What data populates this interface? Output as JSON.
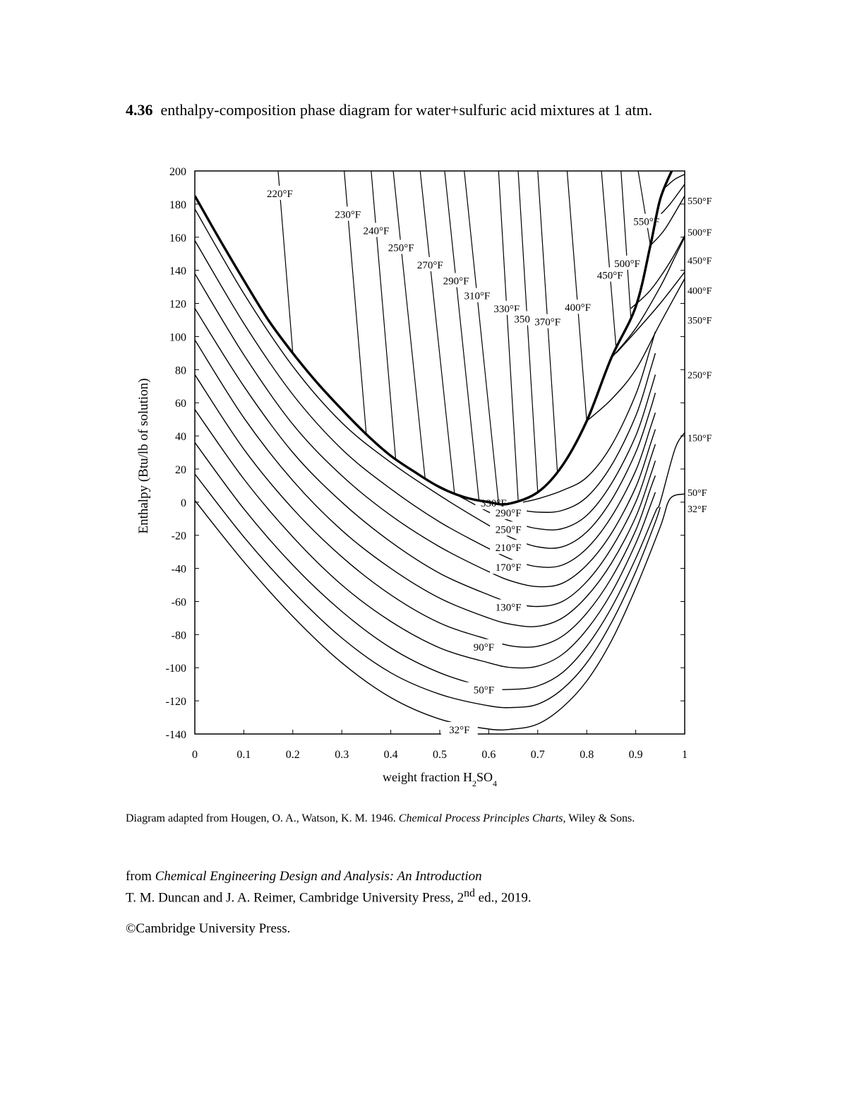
{
  "header": {
    "number": "4.36",
    "title": "enthalpy-composition phase diagram for water+sulfuric acid mixtures at 1 atm."
  },
  "caption": {
    "prefix": "Diagram adapted from Hougen, O. A., Watson, K. M. 1946. ",
    "book": "Chemical Process Principles Charts",
    "suffix": ", Wiley & Sons."
  },
  "source": {
    "line1_prefix": "from ",
    "line1_book": "Chemical Engineering Design and Analysis:  An Introduction",
    "line2_main": "T. M. Duncan and J. A. Reimer, Cambridge University Press, 2",
    "line2_sup": "nd",
    "line2_end": " ed., 2019."
  },
  "copyright": "©Cambridge University Press.",
  "chart_data": {
    "type": "line",
    "xlabel": "weight fraction H2SO4",
    "ylabel": "Enthalpy (Btu/lb of solution)",
    "xlim": [
      0,
      1
    ],
    "ylim": [
      -140,
      200
    ],
    "x_ticks": [
      {
        "v": 0,
        "label": "0"
      },
      {
        "v": 0.1,
        "label": "0.1"
      },
      {
        "v": 0.2,
        "label": "0.2"
      },
      {
        "v": 0.3,
        "label": "0.3"
      },
      {
        "v": 0.4,
        "label": "0.4"
      },
      {
        "v": 0.5,
        "label": "0.5"
      },
      {
        "v": 0.6,
        "label": "0.6"
      },
      {
        "v": 0.7,
        "label": "0.7"
      },
      {
        "v": 0.8,
        "label": "0.8"
      },
      {
        "v": 0.9,
        "label": "0.9"
      },
      {
        "v": 1,
        "label": "1"
      }
    ],
    "y_ticks": [
      {
        "v": 200,
        "label": "200"
      },
      {
        "v": 180,
        "label": "180"
      },
      {
        "v": 160,
        "label": "160"
      },
      {
        "v": 140,
        "label": "140"
      },
      {
        "v": 120,
        "label": "120"
      },
      {
        "v": 100,
        "label": "100"
      },
      {
        "v": 80,
        "label": "80"
      },
      {
        "v": 60,
        "label": "60"
      },
      {
        "v": 40,
        "label": "40"
      },
      {
        "v": 20,
        "label": "20"
      },
      {
        "v": 0,
        "label": "0"
      },
      {
        "v": -20,
        "label": "-20"
      },
      {
        "v": -40,
        "label": "-40"
      },
      {
        "v": -60,
        "label": "-60"
      },
      {
        "v": -80,
        "label": "-80"
      },
      {
        "v": -100,
        "label": "-100"
      },
      {
        "v": -120,
        "label": "-120"
      },
      {
        "v": -140,
        "label": "-140"
      }
    ],
    "boiling_curve": [
      [
        0.0,
        185
      ],
      [
        0.05,
        159
      ],
      [
        0.1,
        134
      ],
      [
        0.15,
        110
      ],
      [
        0.2,
        90
      ],
      [
        0.25,
        72
      ],
      [
        0.3,
        56
      ],
      [
        0.35,
        41
      ],
      [
        0.4,
        28
      ],
      [
        0.45,
        18
      ],
      [
        0.5,
        9
      ],
      [
        0.55,
        3
      ],
      [
        0.6,
        0
      ],
      [
        0.64,
        -1
      ],
      [
        0.7,
        6
      ],
      [
        0.75,
        22
      ],
      [
        0.8,
        49
      ],
      [
        0.85,
        87
      ],
      [
        0.9,
        118
      ],
      [
        0.93,
        155
      ],
      [
        0.95,
        183
      ],
      [
        0.975,
        201
      ]
    ],
    "isotherms": [
      {
        "name": "32°F",
        "left": 1,
        "dip": 0.04,
        "pts": [
          [
            0.0,
            1
          ],
          [
            0.1,
            -36
          ],
          [
            0.2,
            -69
          ],
          [
            0.3,
            -97
          ],
          [
            0.4,
            -118
          ],
          [
            0.5,
            -131
          ],
          [
            0.6,
            -137
          ],
          [
            0.65,
            -137
          ],
          [
            0.7,
            -134
          ],
          [
            0.75,
            -124
          ],
          [
            0.8,
            -108
          ],
          [
            0.85,
            -84
          ],
          [
            0.9,
            -52
          ],
          [
            0.95,
            -15
          ],
          [
            0.97,
            2
          ],
          [
            1.0,
            5
          ]
        ]
      },
      {
        "name": "",
        "left": 1,
        "dip": 0.04,
        "pts": [
          [
            0.0,
            17
          ],
          [
            0.1,
            -21
          ],
          [
            0.2,
            -54
          ],
          [
            0.3,
            -82
          ],
          [
            0.4,
            -103
          ],
          [
            0.5,
            -116
          ],
          [
            0.6,
            -123
          ],
          [
            0.65,
            -124
          ],
          [
            0.7,
            -122
          ],
          [
            0.75,
            -113
          ],
          [
            0.8,
            -97
          ],
          [
            0.85,
            -73
          ],
          [
            0.9,
            -42
          ],
          [
            0.94,
            -12
          ],
          [
            0.95,
            -3
          ]
        ]
      },
      {
        "name": "50°F",
        "left": 0,
        "dip": 0.04,
        "pts": [
          [
            0.0,
            36
          ],
          [
            0.1,
            -4
          ],
          [
            0.2,
            -38
          ],
          [
            0.3,
            -66
          ],
          [
            0.4,
            -88
          ],
          [
            0.5,
            -103
          ],
          [
            0.6,
            -112
          ],
          [
            0.65,
            -113
          ],
          [
            0.7,
            -111
          ],
          [
            0.75,
            -103
          ],
          [
            0.8,
            -87
          ],
          [
            0.85,
            -64
          ],
          [
            0.9,
            -34
          ],
          [
            0.94,
            -6
          ],
          [
            0.95,
            0
          ],
          [
            0.98,
            32
          ],
          [
            1.0,
            42
          ]
        ]
      },
      {
        "name": "",
        "left": 1,
        "dip": 0.04,
        "pts": [
          [
            0.0,
            56
          ],
          [
            0.1,
            14
          ],
          [
            0.2,
            -21
          ],
          [
            0.3,
            -50
          ],
          [
            0.4,
            -72
          ],
          [
            0.5,
            -88
          ],
          [
            0.6,
            -97
          ],
          [
            0.65,
            -100
          ],
          [
            0.7,
            -99
          ],
          [
            0.75,
            -92
          ],
          [
            0.8,
            -77
          ],
          [
            0.85,
            -55
          ],
          [
            0.9,
            -25
          ],
          [
            0.93,
            -2
          ],
          [
            0.94,
            6
          ]
        ]
      },
      {
        "name": "90°F",
        "left": 0,
        "dip": 0.04,
        "pts": [
          [
            0.0,
            77
          ],
          [
            0.1,
            32
          ],
          [
            0.2,
            -4
          ],
          [
            0.3,
            -33
          ],
          [
            0.4,
            -56
          ],
          [
            0.5,
            -73
          ],
          [
            0.6,
            -83
          ],
          [
            0.65,
            -87
          ],
          [
            0.7,
            -87
          ],
          [
            0.75,
            -81
          ],
          [
            0.8,
            -67
          ],
          [
            0.85,
            -46
          ],
          [
            0.9,
            -17
          ],
          [
            0.93,
            8
          ],
          [
            0.94,
            16
          ]
        ]
      },
      {
        "name": "",
        "left": 1,
        "dip": 0.04,
        "pts": [
          [
            0.0,
            98
          ],
          [
            0.1,
            51
          ],
          [
            0.2,
            13
          ],
          [
            0.3,
            -17
          ],
          [
            0.4,
            -40
          ],
          [
            0.5,
            -58
          ],
          [
            0.6,
            -70
          ],
          [
            0.65,
            -74
          ],
          [
            0.7,
            -75
          ],
          [
            0.75,
            -70
          ],
          [
            0.8,
            -57
          ],
          [
            0.85,
            -37
          ],
          [
            0.9,
            -9
          ],
          [
            0.93,
            16
          ],
          [
            0.94,
            25
          ]
        ]
      },
      {
        "name": "130°F",
        "left": 0,
        "dip": 0.04,
        "pts": [
          [
            0.0,
            117
          ],
          [
            0.1,
            70
          ],
          [
            0.2,
            30
          ],
          [
            0.3,
            0
          ],
          [
            0.4,
            -24
          ],
          [
            0.5,
            -43
          ],
          [
            0.6,
            -56
          ],
          [
            0.65,
            -61
          ],
          [
            0.7,
            -63
          ],
          [
            0.75,
            -60
          ],
          [
            0.8,
            -48
          ],
          [
            0.85,
            -28
          ],
          [
            0.9,
            0
          ],
          [
            0.93,
            26
          ],
          [
            0.94,
            35
          ]
        ]
      },
      {
        "name": "",
        "left": 1,
        "dip": 0.04,
        "pts": [
          [
            0.0,
            138
          ],
          [
            0.1,
            89
          ],
          [
            0.2,
            47
          ],
          [
            0.3,
            16
          ],
          [
            0.4,
            -8
          ],
          [
            0.5,
            -27
          ],
          [
            0.6,
            -42
          ],
          [
            0.65,
            -48
          ],
          [
            0.7,
            -51
          ],
          [
            0.75,
            -49
          ],
          [
            0.8,
            -38
          ],
          [
            0.85,
            -19
          ],
          [
            0.9,
            9
          ],
          [
            0.93,
            35
          ],
          [
            0.94,
            44
          ]
        ]
      },
      {
        "name": "170°F",
        "left": 0,
        "dip": 0.04,
        "pts": [
          [
            0.0,
            158
          ],
          [
            0.1,
            108
          ],
          [
            0.2,
            65
          ],
          [
            0.3,
            32
          ],
          [
            0.4,
            8
          ],
          [
            0.5,
            -12
          ],
          [
            0.6,
            -28
          ],
          [
            0.65,
            -35
          ],
          [
            0.7,
            -39
          ],
          [
            0.75,
            -38
          ],
          [
            0.8,
            -28
          ],
          [
            0.85,
            -9
          ],
          [
            0.9,
            19
          ],
          [
            0.93,
            45
          ],
          [
            0.94,
            54
          ]
        ]
      },
      {
        "name": "210°F",
        "left": 0,
        "dip": 0.04,
        "pts": [
          [
            0.0,
            177
          ],
          [
            0.1,
            126
          ],
          [
            0.2,
            82
          ],
          [
            0.3,
            48
          ],
          [
            0.4,
            24
          ],
          [
            0.5,
            4
          ],
          [
            0.6,
            -14
          ],
          [
            0.65,
            -22
          ],
          [
            0.7,
            -27
          ],
          [
            0.75,
            -27
          ],
          [
            0.8,
            -18
          ],
          [
            0.85,
            1
          ],
          [
            0.9,
            30
          ],
          [
            0.93,
            56
          ],
          [
            0.94,
            66
          ]
        ]
      },
      {
        "name": "250°F",
        "left": 0,
        "dip": 0,
        "pts": [
          [
            0.47,
            14
          ],
          [
            0.55,
            2
          ],
          [
            0.6,
            -6
          ],
          [
            0.65,
            -12
          ],
          [
            0.7,
            -16
          ],
          [
            0.75,
            -16
          ],
          [
            0.8,
            -8
          ],
          [
            0.85,
            11
          ],
          [
            0.9,
            40
          ],
          [
            0.93,
            67
          ],
          [
            0.94,
            77
          ]
        ]
      },
      {
        "name": "290°F",
        "left": 0,
        "dip": 0,
        "pts": [
          [
            0.6,
            -1
          ],
          [
            0.65,
            -4
          ],
          [
            0.7,
            -6
          ],
          [
            0.75,
            -5
          ],
          [
            0.8,
            3
          ],
          [
            0.85,
            22
          ],
          [
            0.9,
            52
          ],
          [
            0.93,
            80
          ],
          [
            0.94,
            90
          ]
        ]
      },
      {
        "name": "330°F",
        "left": 0,
        "dip": 0,
        "pts": [
          [
            0.67,
            0
          ],
          [
            0.7,
            2
          ],
          [
            0.75,
            7
          ],
          [
            0.8,
            15
          ],
          [
            0.85,
            34
          ],
          [
            0.9,
            65
          ],
          [
            0.93,
            93
          ],
          [
            0.94,
            103
          ]
        ]
      }
    ],
    "right_isotherms": [
      {
        "label": "150°F",
        "pts": [
          [
            0.85,
            87
          ],
          [
            0.9,
            105
          ],
          [
            0.95,
            130
          ],
          [
            0.98,
            148
          ],
          [
            1.0,
            160
          ]
        ]
      },
      {
        "label": "250°F",
        "pts": [
          [
            0.8,
            49
          ],
          [
            0.85,
            62
          ],
          [
            0.9,
            80
          ],
          [
            0.95,
            108
          ],
          [
            1.0,
            135
          ]
        ]
      },
      {
        "label": "350°F",
        "pts": [
          [
            0.86,
            90
          ],
          [
            0.9,
            103
          ],
          [
            0.95,
            120
          ],
          [
            1.0,
            139
          ]
        ]
      },
      {
        "label": "400°F",
        "pts": [
          [
            0.89,
            117
          ],
          [
            0.93,
            128
          ],
          [
            0.97,
            145
          ],
          [
            1.0,
            161
          ]
        ]
      },
      {
        "label": "450°F",
        "pts": [
          [
            0.93,
            155
          ],
          [
            0.96,
            165
          ],
          [
            1.0,
            185
          ]
        ]
      },
      {
        "label": "500°F",
        "pts": [
          [
            0.945,
            172
          ],
          [
            0.97,
            180
          ],
          [
            1.0,
            192
          ]
        ]
      },
      {
        "label": "550°F",
        "pts": [
          [
            0.96,
            190
          ],
          [
            0.98,
            195
          ],
          [
            1.0,
            198
          ]
        ]
      }
    ],
    "right_labels": [
      {
        "label": "550°F",
        "y": 182
      },
      {
        "label": "500°F",
        "y": 163
      },
      {
        "label": "450°F",
        "y": 146
      },
      {
        "label": "400°F",
        "y": 128
      },
      {
        "label": "350°F",
        "y": 110
      },
      {
        "label": "250°F",
        "y": 77
      },
      {
        "label": "150°F",
        "y": 39
      },
      {
        "label": "50°F",
        "y": 6
      },
      {
        "label": "32°F",
        "y": -4
      }
    ],
    "vapor_lines": [
      {
        "label": "220°F",
        "top": 0.17,
        "bottom": 0.2
      },
      {
        "label": "230°F",
        "top": 0.305,
        "bottom": 0.35
      },
      {
        "label": "240°F",
        "top": 0.36,
        "bottom": 0.41
      },
      {
        "label": "250°F",
        "top": 0.405,
        "bottom": 0.47
      },
      {
        "label": "270°F",
        "top": 0.46,
        "bottom": 0.53
      },
      {
        "label": "290°F",
        "top": 0.51,
        "bottom": 0.58
      },
      {
        "label": "310°F",
        "top": 0.55,
        "bottom": 0.62
      },
      {
        "label": "330°F",
        "top": 0.62,
        "bottom": 0.66
      },
      {
        "label": "350°F",
        "top": 0.66,
        "bottom": 0.7
      },
      {
        "label": "370°F",
        "top": 0.7,
        "bottom": 0.74
      },
      {
        "label": "400°F",
        "top": 0.76,
        "bottom": 0.8
      },
      {
        "label": "450°F",
        "top": 0.83,
        "bottom": 0.86
      },
      {
        "label": "500°F",
        "top": 0.87,
        "bottom": 0.89
      },
      {
        "label": "550°F",
        "top": 0.905,
        "bottom": 0.93
      }
    ]
  }
}
